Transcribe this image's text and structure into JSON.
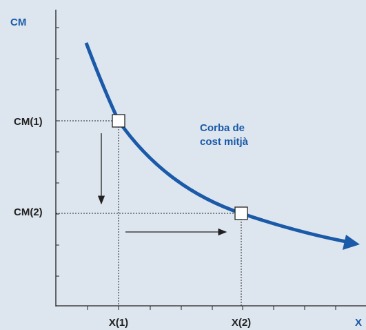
{
  "axes": {
    "y_label": "CM",
    "x_label": "X"
  },
  "points": [
    {
      "y_label": "CM(1)",
      "x_label": "X(1)"
    },
    {
      "y_label": "CM(2)",
      "x_label": "X(2)"
    }
  ],
  "curve_label": [
    "Corba de",
    "cost mitjà"
  ]
}
